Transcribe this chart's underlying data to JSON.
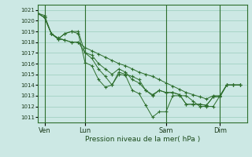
{
  "background_color": "#cce8e4",
  "grid_color": "#99ccbb",
  "line_color": "#2d6e2d",
  "ylim": [
    1010.5,
    1021.5
  ],
  "yticks": [
    1011,
    1012,
    1013,
    1014,
    1015,
    1016,
    1017,
    1018,
    1019,
    1020,
    1021
  ],
  "xlabel": "Pression niveau de la mer( hPa )",
  "xtick_labels": [
    "Ven",
    "Lun",
    "Sam",
    "Dim"
  ],
  "xtick_positions": [
    1,
    7,
    19,
    27
  ],
  "vline_positions": [
    1,
    7,
    19,
    27
  ],
  "xlim": [
    0,
    31
  ],
  "series": [
    [
      1020.7,
      1020.3,
      1018.8,
      1018.3,
      1018.8,
      1019.0,
      1018.8,
      1016.1,
      1015.8,
      1014.5,
      1013.8,
      1014.0,
      1015.0,
      1014.9,
      1013.5,
      1013.2,
      1012.1,
      1011.0,
      1011.5,
      1011.5,
      1013.0,
      1013.0,
      1013.0,
      1012.5,
      1012.0,
      1012.0,
      1012.0,
      1013.0,
      1014.0,
      1014.0,
      1014.0
    ],
    [
      1020.7,
      1020.3,
      1018.8,
      1018.3,
      1018.8,
      1019.0,
      1019.0,
      1017.0,
      1016.5,
      1015.5,
      1014.8,
      1014.0,
      1015.2,
      1015.0,
      1014.8,
      1014.5,
      1013.5,
      1013.0,
      1013.5,
      1013.3,
      1013.3,
      1013.1,
      1012.2,
      1012.2,
      1012.2,
      1012.1,
      1012.9,
      1012.9,
      1014.0,
      1014.0,
      1014.0
    ],
    [
      1020.7,
      1020.3,
      1018.8,
      1018.3,
      1018.2,
      1018.0,
      1018.0,
      1017.0,
      1016.8,
      1016.0,
      1015.5,
      1015.0,
      1015.5,
      1015.2,
      1014.5,
      1014.2,
      1013.5,
      1013.1,
      1013.5,
      1013.3,
      1013.3,
      1013.1,
      1012.2,
      1012.2,
      1012.2,
      1012.1,
      1012.9,
      1012.9,
      1014.0,
      1014.0,
      1014.0
    ],
    [
      1020.7,
      1020.5,
      1018.8,
      1018.4,
      1018.2,
      1018.0,
      1018.0,
      1017.5,
      1017.2,
      1016.9,
      1016.6,
      1016.3,
      1016.0,
      1015.8,
      1015.5,
      1015.2,
      1015.0,
      1014.8,
      1014.5,
      1014.2,
      1013.9,
      1013.6,
      1013.3,
      1013.1,
      1012.9,
      1012.7,
      1013.0,
      1013.0,
      1014.0,
      1014.0,
      1014.0
    ]
  ]
}
